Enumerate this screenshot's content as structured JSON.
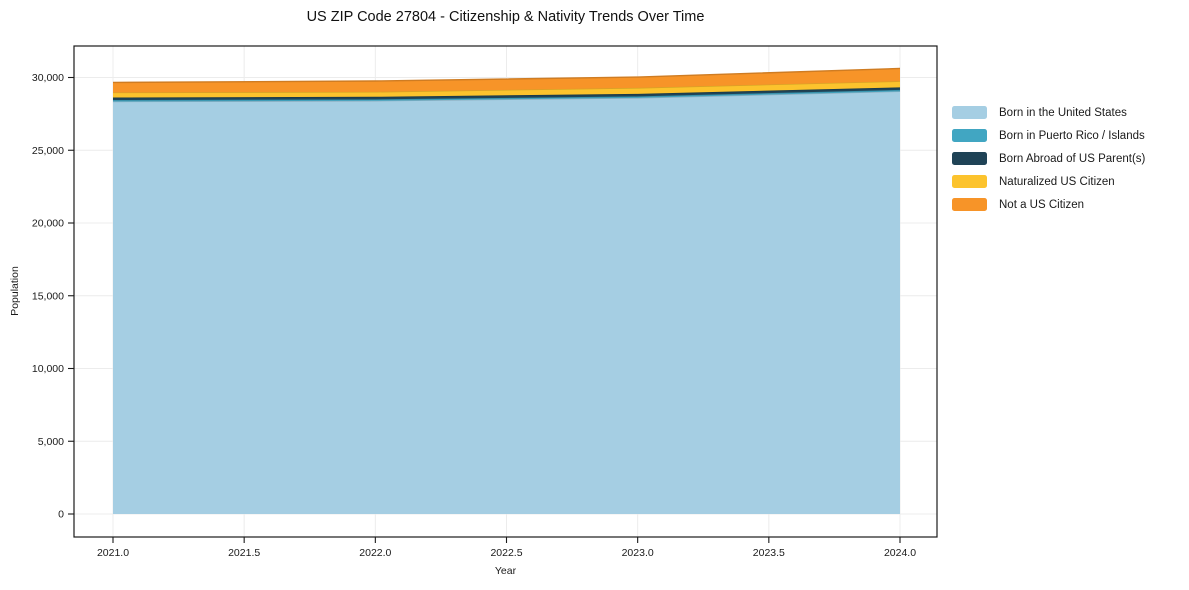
{
  "title": "US ZIP Code 27804 - Citizenship & Nativity Trends Over Time",
  "chart_data": {
    "type": "area",
    "stacked": true,
    "title": "US ZIP Code 27804 - Citizenship & Nativity Trends Over Time",
    "xlabel": "Year",
    "ylabel": "Population",
    "x": [
      2021,
      2022,
      2023,
      2024
    ],
    "series": [
      {
        "name": "Born in the United States",
        "color": "#a5cee3",
        "values": [
          28350,
          28400,
          28600,
          29050
        ]
      },
      {
        "name": "Born in Puerto Rico / Islands",
        "color": "#41a6c2",
        "values": [
          100,
          100,
          100,
          100
        ]
      },
      {
        "name": "Born Abroad of US Parent(s)",
        "color": "#1f4356",
        "values": [
          175,
          175,
          175,
          175
        ]
      },
      {
        "name": "Naturalized US Citizen",
        "color": "#fcc32d",
        "values": [
          345,
          340,
          410,
          420
        ]
      },
      {
        "name": "Not a US Citizen",
        "color": "#f79428",
        "values": [
          690,
          745,
          745,
          875
        ]
      }
    ],
    "stack_totals": [
      29660,
      29760,
      30030,
      30620
    ],
    "xticks": [
      2021.0,
      2021.5,
      2022.0,
      2022.5,
      2023.0,
      2023.5,
      2024.0
    ],
    "xtick_labels": [
      "2021.0",
      "2021.5",
      "2022.0",
      "2022.5",
      "2023.0",
      "2023.5",
      "2024.0"
    ],
    "yticks": [
      0,
      5000,
      10000,
      15000,
      20000,
      25000,
      30000
    ],
    "ytick_labels": [
      "0",
      "5,000",
      "10,000",
      "15,000",
      "20,000",
      "25,000",
      "30,000"
    ],
    "xlim": [
      2020.85,
      2024.15
    ],
    "ylim": [
      -1580,
      32170
    ],
    "grid": true,
    "grid_color": "#ececec",
    "spine_color": "#1a1a1a",
    "text_color": "#1a1a1a",
    "legend_position": "right",
    "legend_frame": false
  }
}
